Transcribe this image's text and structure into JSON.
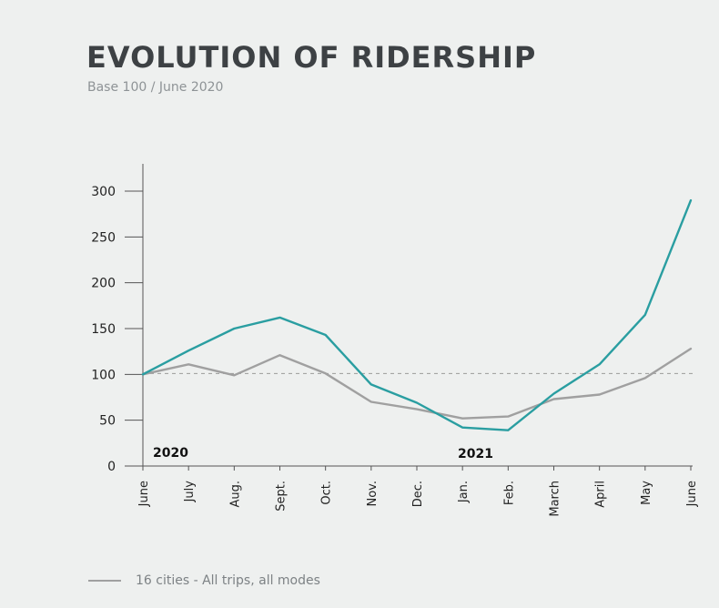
{
  "title": "EVOLUTION OF RIDERSHIP",
  "subtitle": "Base 100 / June 2020",
  "legend": {
    "label": "16 cities - All trips, all modes"
  },
  "colors": {
    "teal": "#2a9ea1",
    "gray": "#a0a0a0"
  },
  "chart_data": {
    "type": "line",
    "categories": [
      "June",
      "July",
      "Aug.",
      "Sept.",
      "Oct.",
      "Nov.",
      "Dec.",
      "Jan.",
      "Feb.",
      "March",
      "April",
      "May",
      "June"
    ],
    "year_labels": [
      "2020",
      "2021"
    ],
    "y_ticks": [
      0,
      50,
      100,
      150,
      200,
      250,
      300
    ],
    "ylim": [
      0,
      330
    ],
    "reference_line": 101,
    "series": [
      {
        "color": "#a0a0a0",
        "values": [
          100,
          111,
          99,
          121,
          101,
          70,
          62,
          52,
          54,
          73,
          78,
          96,
          128
        ]
      },
      {
        "color": "#2a9ea1",
        "values": [
          100,
          126,
          150,
          162,
          143,
          89,
          69,
          42,
          39,
          79,
          111,
          165,
          290
        ]
      }
    ]
  }
}
